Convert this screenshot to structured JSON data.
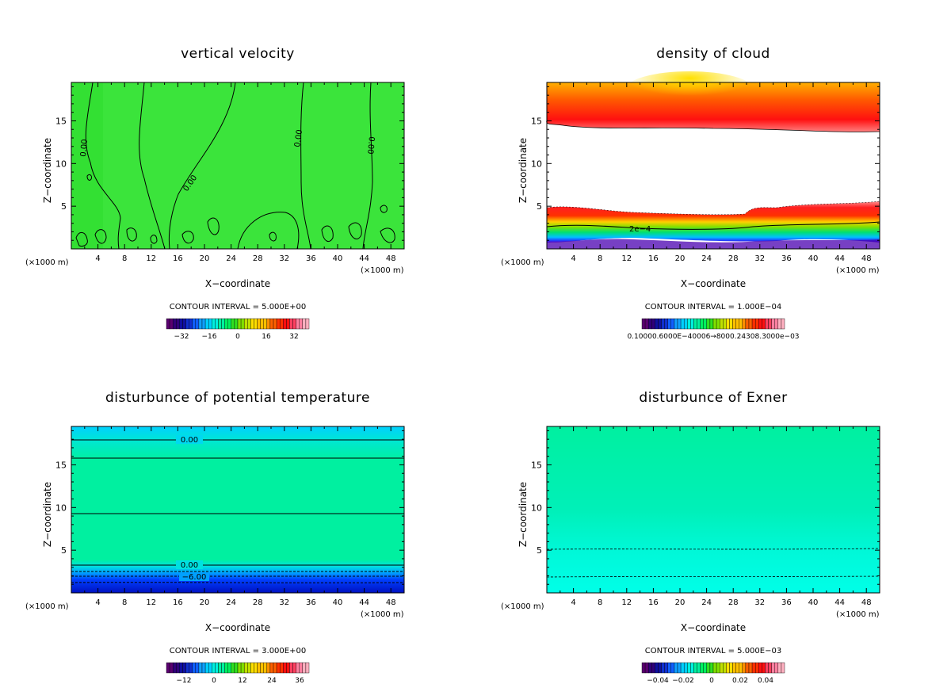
{
  "units_label": "(×1000 m)",
  "x_axis_label": "X−coordinate",
  "y_axis_label": "Z−coordinate",
  "x_ticks": [
    4,
    8,
    12,
    16,
    20,
    24,
    28,
    32,
    36,
    40,
    44,
    48
  ],
  "y_ticks": [
    5,
    10,
    15
  ],
  "panels": [
    {
      "title": "vertical velocity",
      "contour_interval": "CONTOUR INTERVAL = 5.000E+00",
      "colorbar_labels": [
        "−32",
        "−16",
        "0",
        "16",
        "32"
      ],
      "contour_labels": [
        "0.00",
        "0.00",
        "0.00",
        "0.00"
      ]
    },
    {
      "title": "density of cloud",
      "contour_interval": "CONTOUR INTERVAL = 1.000E−04",
      "colorbar_labels": [
        "0.10000.6000E−40006→8000.24308.3000e−03"
      ],
      "contour_labels": [
        "2e−4"
      ]
    },
    {
      "title": "disturbunce of potential temperature",
      "contour_interval": "CONTOUR INTERVAL = 3.000E+00",
      "colorbar_labels": [
        "−12",
        "0",
        "12",
        "24",
        "36"
      ],
      "contour_labels": [
        "0.00",
        "0.00",
        "−6.00"
      ]
    },
    {
      "title": "disturbunce of Exner",
      "contour_interval": "CONTOUR INTERVAL = 5.000E−03",
      "colorbar_labels": [
        "−0.04",
        "−0.02",
        "0",
        "0.02",
        "0.04"
      ],
      "contour_labels": []
    }
  ],
  "chart_data": [
    {
      "type": "heatmap",
      "title": "vertical velocity",
      "xlabel": "X−coordinate",
      "ylabel": "Z−coordinate",
      "xlim": [
        0,
        50
      ],
      "ylim": [
        0,
        19.5
      ],
      "x_ticks": [
        4,
        8,
        12,
        16,
        20,
        24,
        28,
        32,
        36,
        40,
        44,
        48
      ],
      "y_ticks": [
        5,
        10,
        15
      ],
      "contour_interval": 5.0,
      "colorbar_range": [
        -32,
        32
      ],
      "contour_level_labeled": 0.0,
      "dominant_value": 0
    },
    {
      "type": "heatmap",
      "title": "density of cloud",
      "xlabel": "X−coordinate",
      "ylabel": "Z−coordinate",
      "xlim": [
        0,
        50
      ],
      "ylim": [
        0,
        19.5
      ],
      "x_ticks": [
        4,
        8,
        12,
        16,
        20,
        24,
        28,
        32,
        36,
        40,
        44,
        48
      ],
      "y_ticks": [
        5,
        10,
        15
      ],
      "contour_interval": 0.0001,
      "contour_level_labeled": 0.0002,
      "cloud_layers_z": [
        [
          0.5,
          5.0
        ],
        [
          14.0,
          19.5
        ]
      ]
    },
    {
      "type": "heatmap",
      "title": "disturbunce of potential temperature",
      "xlabel": "X−coordinate",
      "ylabel": "Z−coordinate",
      "xlim": [
        0,
        50
      ],
      "ylim": [
        0,
        19.5
      ],
      "x_ticks": [
        4,
        8,
        12,
        16,
        20,
        24,
        28,
        32,
        36,
        40,
        44,
        48
      ],
      "y_ticks": [
        5,
        10,
        15
      ],
      "contour_interval": 3.0,
      "colorbar_range": [
        -12,
        36
      ],
      "contour_lines_z": [
        18.3,
        16.1,
        9.5,
        3.4,
        2.6,
        2.0,
        1.3
      ]
    },
    {
      "type": "heatmap",
      "title": "disturbunce of Exner",
      "xlabel": "X−coordinate",
      "ylabel": "Z−coordinate",
      "xlim": [
        0,
        50
      ],
      "ylim": [
        0,
        19.5
      ],
      "x_ticks": [
        4,
        8,
        12,
        16,
        20,
        24,
        28,
        32,
        36,
        40,
        44,
        48
      ],
      "y_ticks": [
        5,
        10,
        15
      ],
      "contour_interval": 0.005,
      "colorbar_range": [
        -0.04,
        0.04
      ],
      "contour_lines_z": [
        5.3,
        1.8
      ]
    }
  ]
}
